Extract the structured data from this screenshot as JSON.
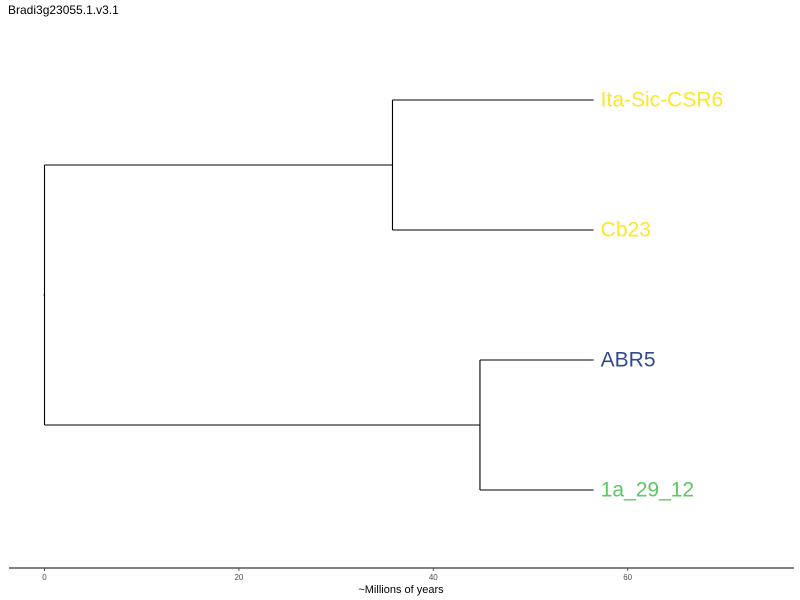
{
  "title": "Bradi3g23055.1.v3.1",
  "axis": {
    "label": "~Millions of years",
    "min": 0,
    "max": 77,
    "ticks": [
      0,
      20,
      40,
      60
    ],
    "tick_labels": [
      "0",
      "20",
      "40",
      "60"
    ]
  },
  "tree": {
    "tip_depth": 56.5,
    "nodes": {
      "root": {
        "depth": 0
      },
      "clade_top": {
        "depth": 35.8
      },
      "clade_bottom": {
        "depth": 44.8
      }
    },
    "tips": [
      {
        "label": "Ita-Sic-CSR6",
        "color": "#FDE725"
      },
      {
        "label": "Cb23",
        "color": "#FDE725"
      },
      {
        "label": "ABR5",
        "color": "#33498B"
      },
      {
        "label": "1a_29_12",
        "color": "#5BC863"
      }
    ]
  }
}
